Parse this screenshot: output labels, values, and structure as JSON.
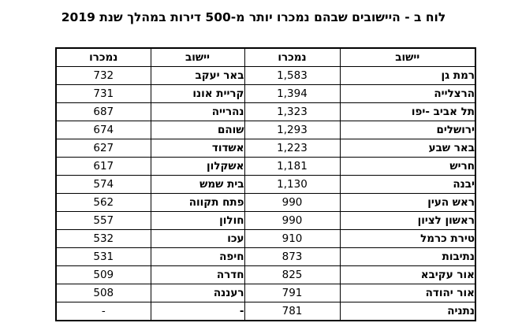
{
  "title": "לוח ב - היישובים שבהם נמכרו יותר מ-500 דירות במהלך שנת 2019",
  "table": {
    "col_headers": [
      "יישוב",
      "נמכרו",
      "יישוב",
      "נמכרו"
    ],
    "rows": [
      {
        "city_a": "רמת גן",
        "sold_a": "1,583",
        "city_b": "באר יעקב",
        "sold_b": "732"
      },
      {
        "city_a": "הרצלייה",
        "sold_a": "1,394",
        "city_b": "קריית אונו",
        "sold_b": "731"
      },
      {
        "city_a": "תל אביב -יפו",
        "sold_a": "1,323",
        "city_b": "נהרייה",
        "sold_b": "687"
      },
      {
        "city_a": "ירושלים",
        "sold_a": "1,293",
        "city_b": "שוהם",
        "sold_b": "674"
      },
      {
        "city_a": "באר שבע",
        "sold_a": "1,223",
        "city_b": "אשדוד",
        "sold_b": "627"
      },
      {
        "city_a": "חריש",
        "sold_a": "1,181",
        "city_b": "אשקלון",
        "sold_b": "617"
      },
      {
        "city_a": "יבנה",
        "sold_a": "1,130",
        "city_b": "בית שמש",
        "sold_b": "574"
      },
      {
        "city_a": "ראש העין",
        "sold_a": "990",
        "city_b": "פתח תקווה",
        "sold_b": "562"
      },
      {
        "city_a": "ראשון לציון",
        "sold_a": "990",
        "city_b": "חולון",
        "sold_b": "557"
      },
      {
        "city_a": "טירת כרמל",
        "sold_a": "910",
        "city_b": "עכו",
        "sold_b": "532"
      },
      {
        "city_a": "נתיבות",
        "sold_a": "873",
        "city_b": "חיפה",
        "sold_b": "531"
      },
      {
        "city_a": "אור עקיבא",
        "sold_a": "825",
        "city_b": "חדרה",
        "sold_b": "509"
      },
      {
        "city_a": "אור יהודה",
        "sold_a": "791",
        "city_b": "רעננה",
        "sold_b": "508"
      },
      {
        "city_a": "נתניה",
        "sold_a": "781",
        "city_b": "-",
        "sold_b": "-"
      }
    ]
  }
}
